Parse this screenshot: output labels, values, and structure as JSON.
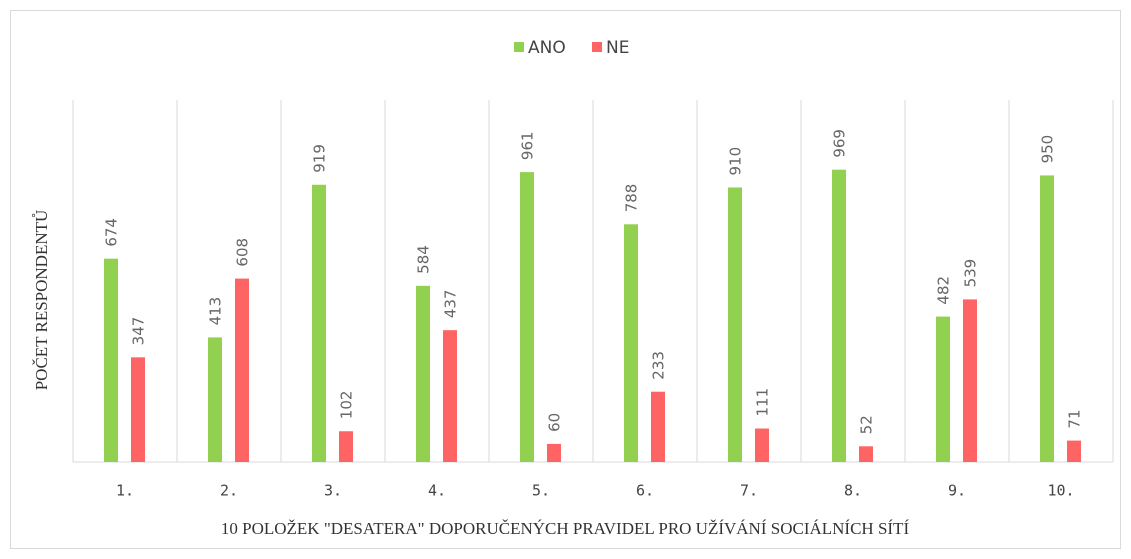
{
  "chart_data": {
    "type": "bar",
    "xlabel": "10 POLOŽEK \"DESATERA\" DOPORUČENÝCH PRAVIDEL PRO UŽÍVÁNÍ SOCIÁLNÍCH SÍTÍ",
    "ylabel": "POČET RESPONDENTŮ",
    "categories": [
      "1.",
      "2.",
      "3.",
      "4.",
      "5.",
      "6.",
      "7.",
      "8.",
      "9.",
      "10."
    ],
    "series": [
      {
        "name": "ANO",
        "color": "#92d050",
        "values": [
          674,
          413,
          919,
          584,
          961,
          788,
          910,
          969,
          482,
          950
        ]
      },
      {
        "name": "NE",
        "color": "#ff6464",
        "values": [
          347,
          608,
          102,
          437,
          60,
          233,
          111,
          52,
          539,
          71
        ]
      }
    ],
    "ylim": [
      0,
      1200
    ],
    "legend": "top"
  }
}
